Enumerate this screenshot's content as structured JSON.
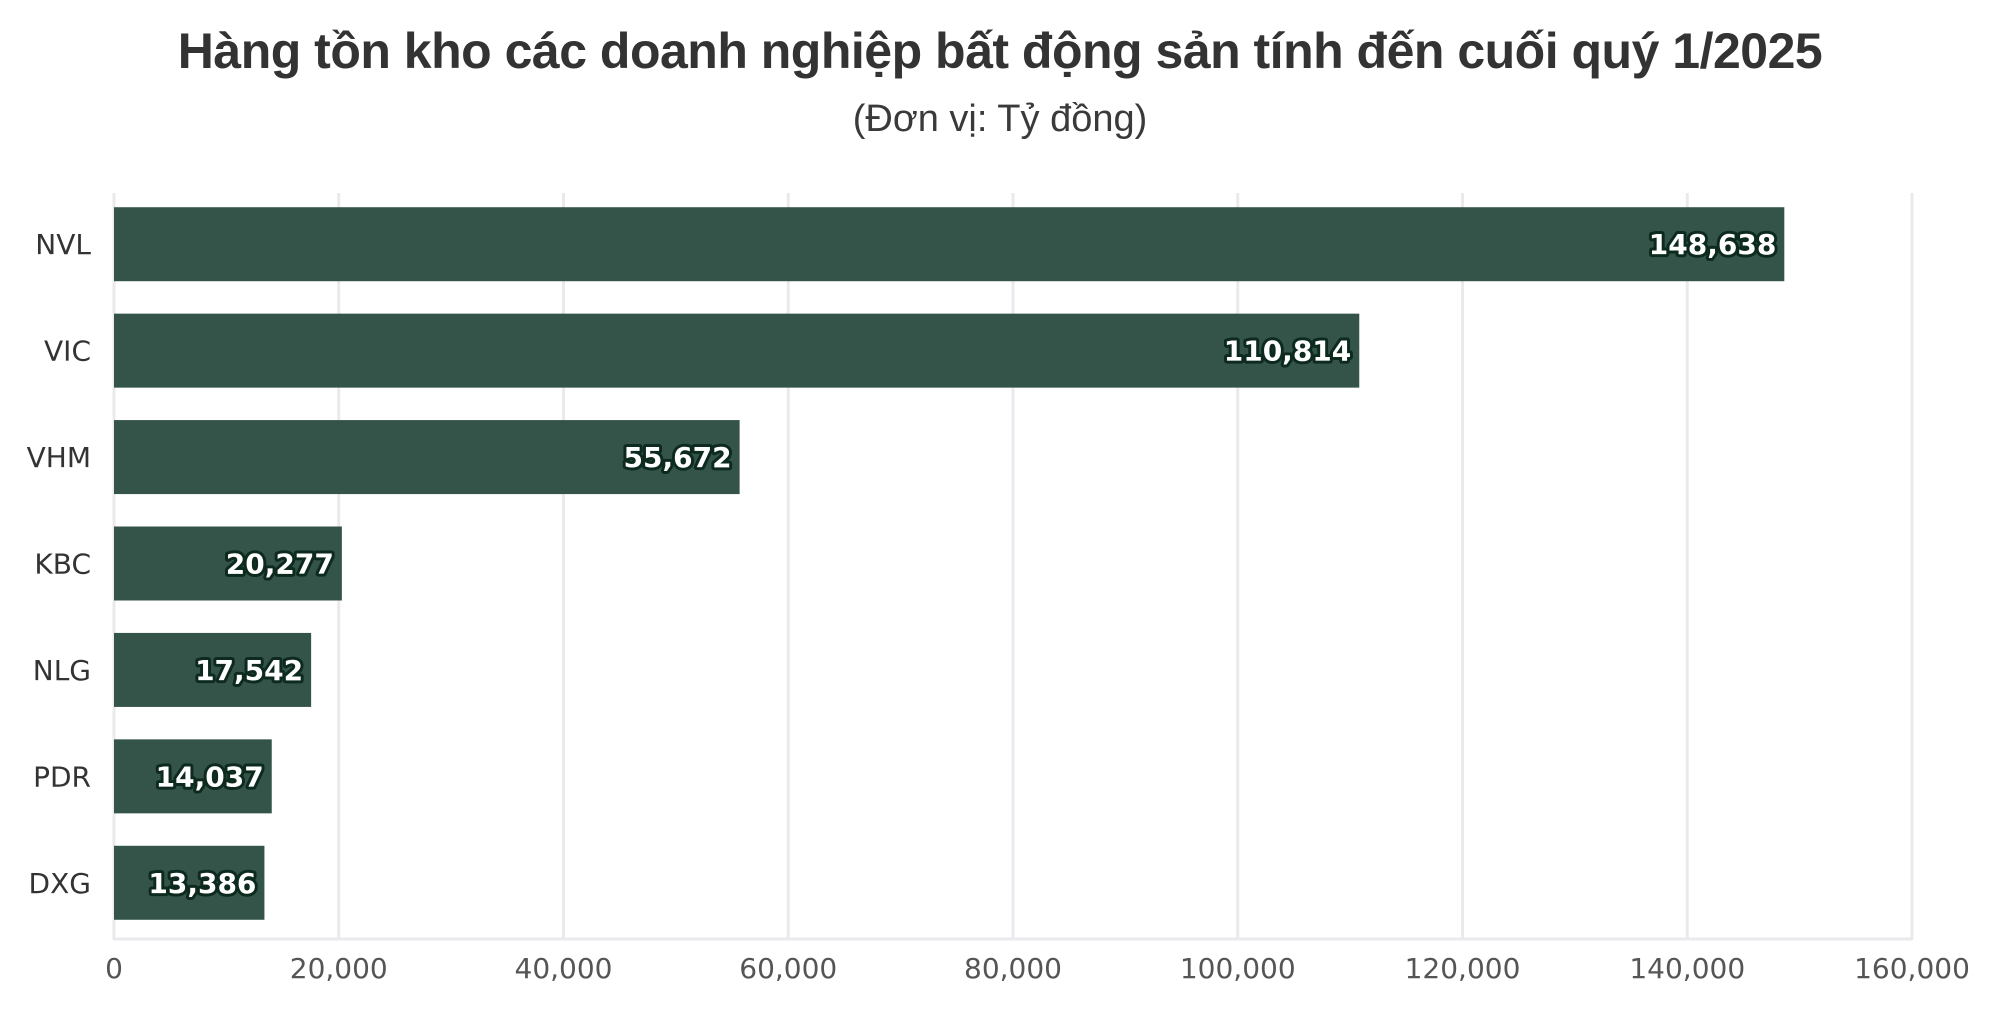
{
  "chart_data": {
    "type": "bar",
    "orientation": "horizontal",
    "title": "Hàng tồn kho các doanh nghiệp bất động sản tính đến cuối quý 1/2025",
    "subtitle": "(Đơn vị: Tỷ đồng)",
    "categories": [
      "NVL",
      "VIC",
      "VHM",
      "KBC",
      "NLG",
      "PDR",
      "DXG"
    ],
    "values": [
      148638,
      110814,
      55672,
      20277,
      17542,
      14037,
      13386
    ],
    "data_labels": [
      "148,638",
      "110,814",
      "55,672",
      "20,277",
      "17,542",
      "14,037",
      "13,386"
    ],
    "x_ticks": [
      0,
      20000,
      40000,
      60000,
      80000,
      100000,
      120000,
      140000,
      160000
    ],
    "x_tick_labels": [
      "0",
      "20,000",
      "40,000",
      "60,000",
      "80,000",
      "100,000",
      "120,000",
      "140,000",
      "160,000"
    ],
    "xlim": [
      0,
      160000
    ],
    "xlabel": "",
    "ylabel": "",
    "grid": true,
    "legend": "none",
    "bar_color": "#34544a",
    "grid_color": "#ebe9ee"
  }
}
